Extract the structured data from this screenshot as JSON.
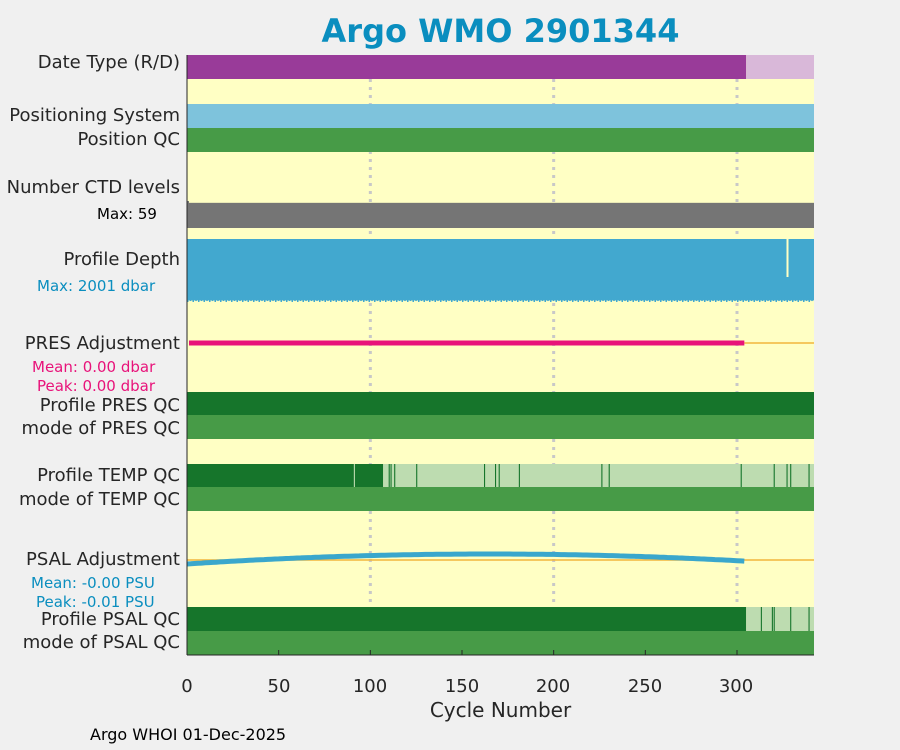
{
  "chart_data": {
    "type": "table",
    "title": "Argo WMO 2901344",
    "xlabel": "Cycle Number",
    "xlim": [
      0,
      342
    ],
    "xticks": [
      0,
      50,
      100,
      150,
      200,
      250,
      300
    ],
    "xtick_labels": [
      "0",
      "50",
      "100",
      "150",
      "200",
      "250",
      "300"
    ],
    "grid_x": [
      100,
      200,
      300
    ],
    "last_cycle": 342,
    "rows": {
      "date_type": {
        "label": "Date Type (R/D)",
        "delayed_until": 305,
        "delayed_color": "#993b99",
        "realtime_color": "#d9b8d9"
      },
      "positioning_system": {
        "label": "Positioning System",
        "color": "#7ec3dc"
      },
      "position_qc": {
        "label": "Position QC",
        "color": "#479b47"
      },
      "ctd_levels": {
        "label": "Number CTD levels",
        "max_label": "Max: 59",
        "max": 59,
        "typical": 55,
        "color": "#757575"
      },
      "profile_depth": {
        "label": "Profile Depth",
        "max_label": "Max: 2001 dbar",
        "max": 2001,
        "color": "#42a8cf"
      },
      "pres_adjustment": {
        "label": "PRES Adjustment",
        "mean_label": "Mean: 0.00 dbar",
        "peak_label": "Peak: 0.00 dbar",
        "mean": 0.0,
        "peak": 0.0,
        "until": 304,
        "color": "#e8137a",
        "zero_color": "#f2b53d"
      },
      "profile_pres_qc": {
        "label": "Profile PRES QC",
        "color": "#16752b"
      },
      "mode_pres_qc": {
        "label": "mode of PRES QC",
        "color": "#479b47"
      },
      "profile_temp_qc": {
        "label": "Profile TEMP QC",
        "good_until": 107,
        "good_color": "#16752b",
        "partial_color": "#bddcb0",
        "marks": [
          91,
          110,
          111,
          113,
          125,
          162,
          168,
          170,
          181,
          226,
          230,
          302,
          320,
          327,
          329,
          339
        ]
      },
      "mode_temp_qc": {
        "label": "mode of TEMP QC",
        "color": "#479b47"
      },
      "psal_adjustment": {
        "label": "PSAL Adjustment",
        "mean_label": "Mean: -0.00 PSU",
        "peak_label": "Peak: -0.01 PSU",
        "mean": -0.0,
        "peak": -0.01,
        "until": 304,
        "color": "#3aa7cc",
        "zero_color": "#f2b53d"
      },
      "profile_psal_qc": {
        "label": "Profile PSAL QC",
        "good_until": 305,
        "good_color": "#16752b",
        "partial_color": "#bddcb0",
        "marks": [
          313,
          319,
          320,
          329,
          339
        ]
      },
      "mode_psal_qc": {
        "label": "mode of PSAL QC",
        "color": "#479b47"
      }
    }
  },
  "credit": "Argo WHOI 01-Dec-2025",
  "colors": {
    "panel_bg": "#ffffc4",
    "page_bg": "#f0f0f0",
    "title": "#0a8ebf",
    "grid": "#c8c8c8"
  }
}
